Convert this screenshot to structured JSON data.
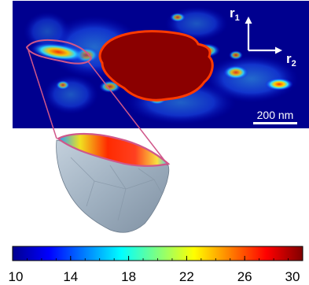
{
  "figure": {
    "axis_r1_label": "r",
    "axis_r1_sub": "1",
    "axis_r2_label": "r",
    "axis_r2_sub": "2",
    "scalebar_label": "200 nm"
  },
  "colorbar": {
    "ticks": [
      "10",
      "14",
      "18",
      "22",
      "26",
      "30"
    ],
    "min": 10,
    "max": 30
  },
  "colors": {
    "map_background": "#00008f",
    "core": "#8b0000",
    "outline": "#d0578a",
    "particle_shell": "#a9b8c6"
  }
}
